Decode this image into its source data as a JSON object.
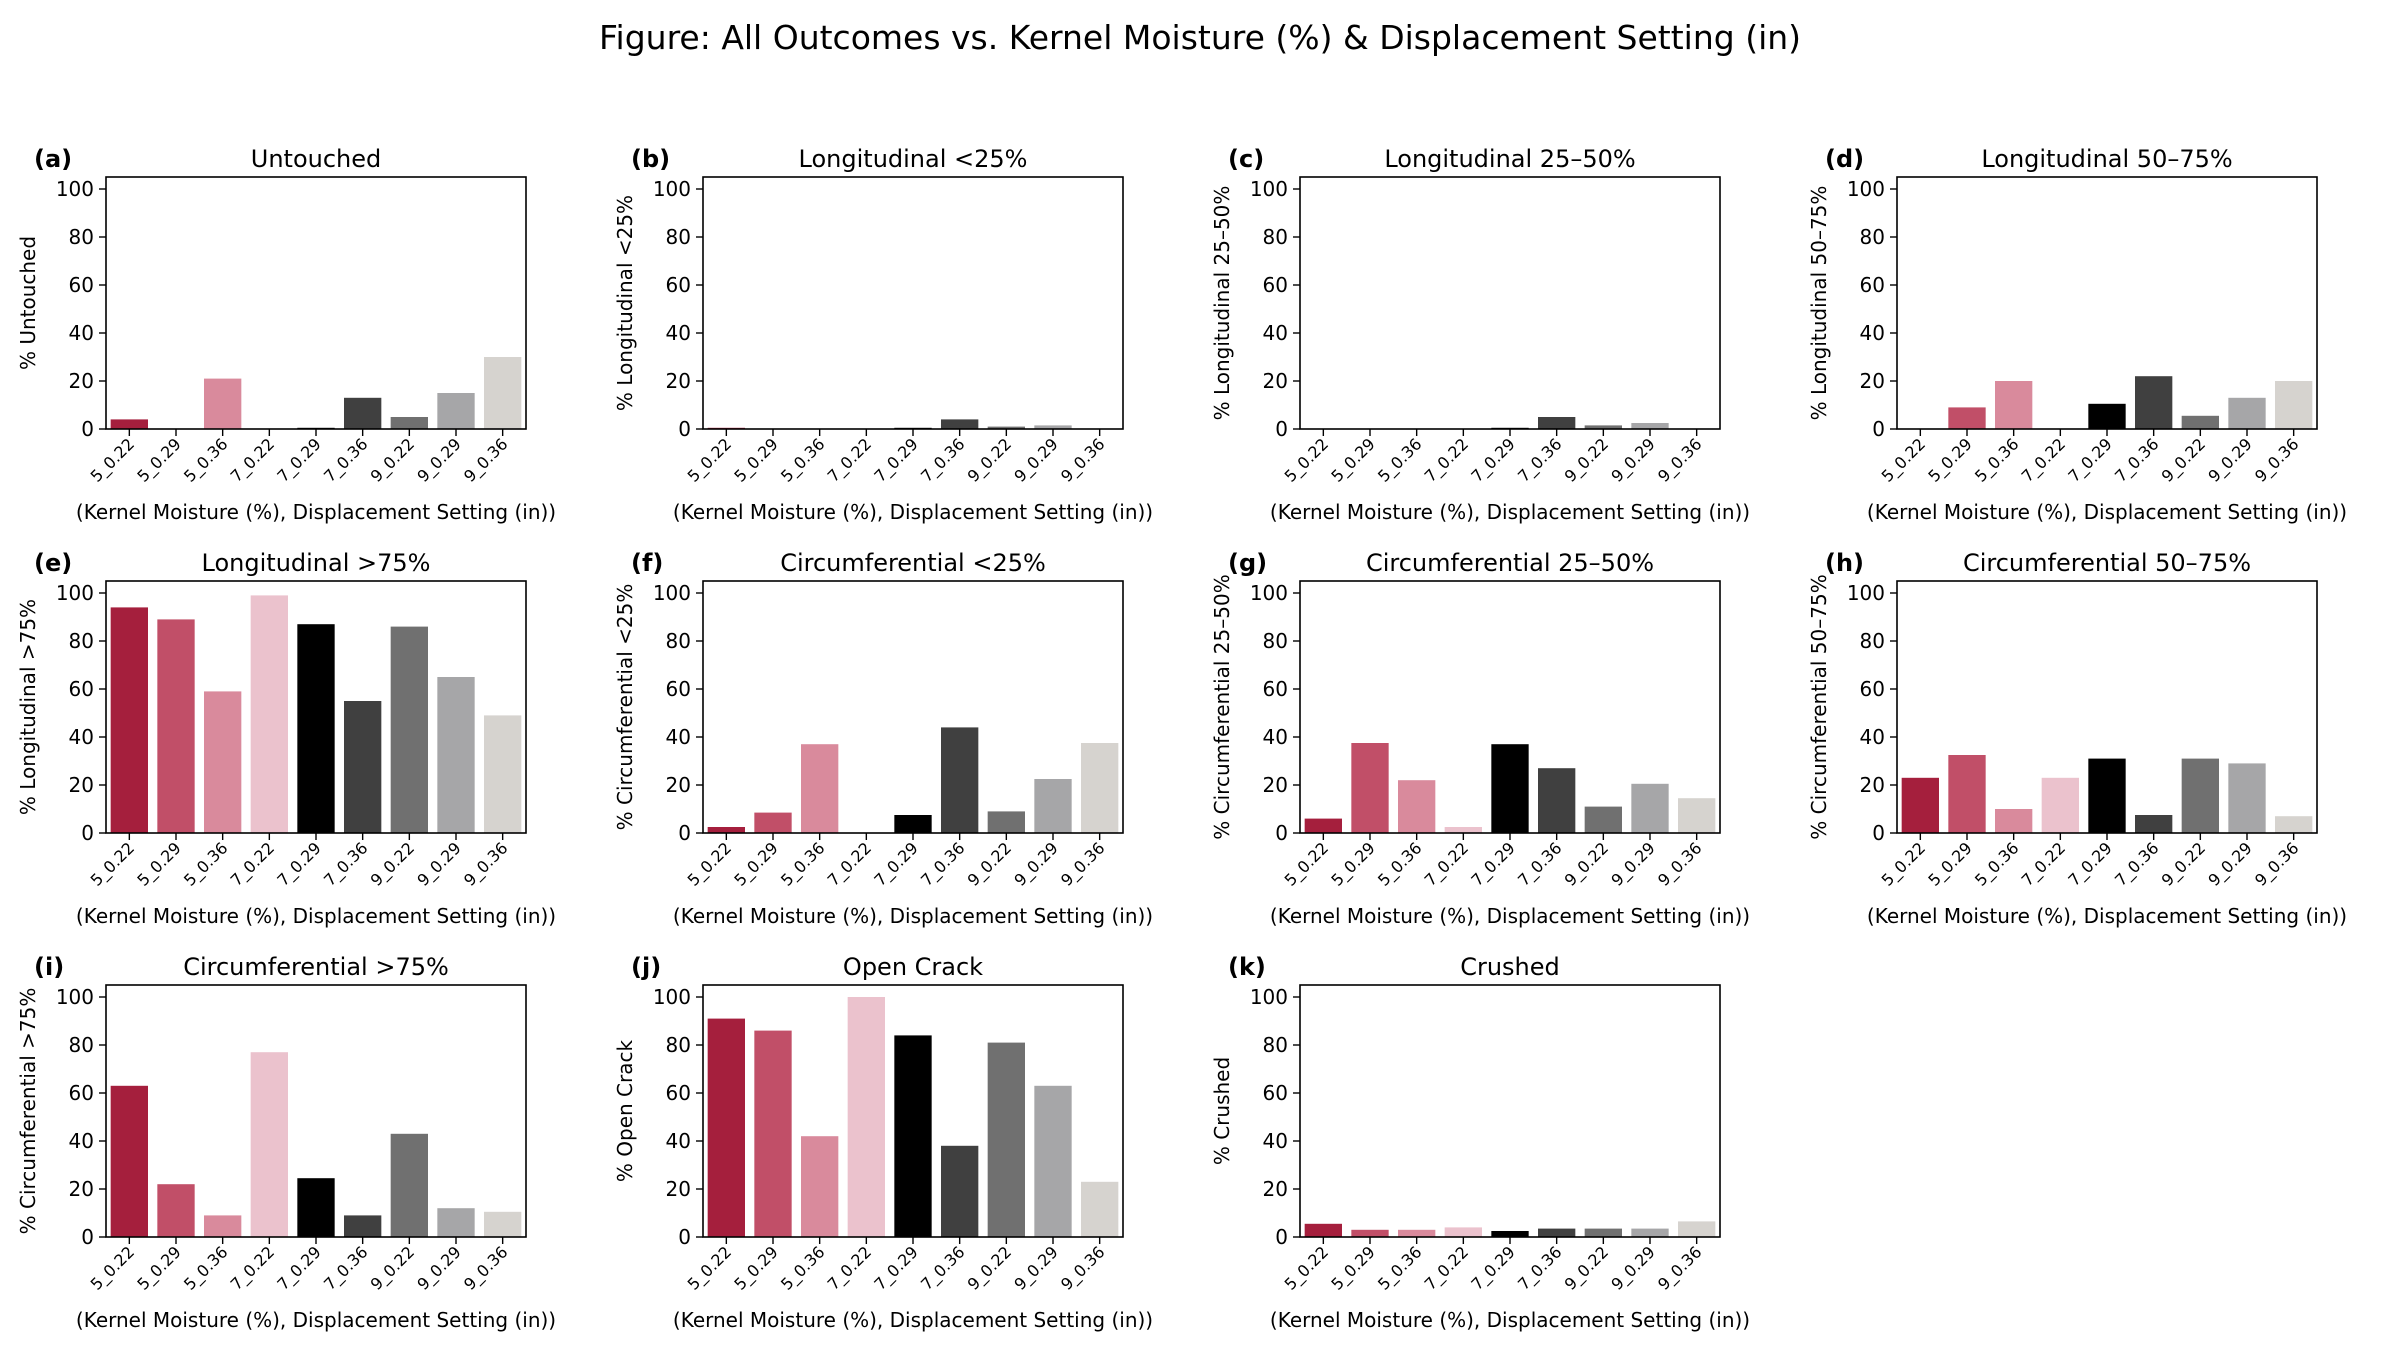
{
  "figure": {
    "title": "Figure: All Outcomes vs. Kernel Moisture (%) & Displacement Setting (in)"
  },
  "colors": [
    "#a51f3d",
    "#c14f68",
    "#d98a9c",
    "#ebc2cd",
    "#000000",
    "#404040",
    "#707070",
    "#a6a6a8",
    "#d6d3cf"
  ],
  "chart_data": [
    {
      "type": "bar",
      "panel_label": "(a)",
      "title": "Untouched",
      "ylabel": "% Untouched",
      "xlabel": "(Kernel Moisture (%), Displacement Setting (in))",
      "categories": [
        "5_0.22",
        "5_0.29",
        "5_0.36",
        "7_0.22",
        "7_0.29",
        "7_0.36",
        "9_0.22",
        "9_0.29",
        "9_0.36"
      ],
      "values": [
        4,
        0,
        21,
        0,
        0.5,
        13,
        5,
        15,
        30
      ],
      "ylim": [
        0,
        105
      ],
      "yticks": [
        0,
        20,
        40,
        60,
        80,
        100
      ]
    },
    {
      "type": "bar",
      "panel_label": "(b)",
      "title": "Longitudinal <25%",
      "ylabel": "% Longitudinal <25%",
      "xlabel": "(Kernel Moisture (%), Displacement Setting (in))",
      "categories": [
        "5_0.22",
        "5_0.29",
        "5_0.36",
        "7_0.22",
        "7_0.29",
        "7_0.36",
        "9_0.22",
        "9_0.29",
        "9_0.36"
      ],
      "values": [
        0.5,
        0,
        0,
        0,
        0.5,
        4,
        1,
        1.5,
        0
      ],
      "ylim": [
        0,
        105
      ],
      "yticks": [
        0,
        20,
        40,
        60,
        80,
        100
      ]
    },
    {
      "type": "bar",
      "panel_label": "(c)",
      "title": "Longitudinal 25–50%",
      "ylabel": "% Longitudinal 25–50%",
      "xlabel": "(Kernel Moisture (%), Displacement Setting (in))",
      "categories": [
        "5_0.22",
        "5_0.29",
        "5_0.36",
        "7_0.22",
        "7_0.29",
        "7_0.36",
        "9_0.22",
        "9_0.29",
        "9_0.36"
      ],
      "values": [
        0,
        0,
        0,
        0,
        0.5,
        5,
        1.5,
        2.5,
        0
      ],
      "ylim": [
        0,
        105
      ],
      "yticks": [
        0,
        20,
        40,
        60,
        80,
        100
      ]
    },
    {
      "type": "bar",
      "panel_label": "(d)",
      "title": "Longitudinal 50–75%",
      "ylabel": "% Longitudinal 50–75%",
      "xlabel": "(Kernel Moisture (%), Displacement Setting (in))",
      "categories": [
        "5_0.22",
        "5_0.29",
        "5_0.36",
        "7_0.22",
        "7_0.29",
        "7_0.36",
        "9_0.22",
        "9_0.29",
        "9_0.36"
      ],
      "values": [
        0,
        9,
        20,
        0,
        10.5,
        22,
        5.5,
        13,
        20
      ],
      "ylim": [
        0,
        105
      ],
      "yticks": [
        0,
        20,
        40,
        60,
        80,
        100
      ]
    },
    {
      "type": "bar",
      "panel_label": "(e)",
      "title": "Longitudinal >75%",
      "ylabel": "% Longitudinal >75%",
      "xlabel": "(Kernel Moisture (%), Displacement Setting (in))",
      "categories": [
        "5_0.22",
        "5_0.29",
        "5_0.36",
        "7_0.22",
        "7_0.29",
        "7_0.36",
        "9_0.22",
        "9_0.29",
        "9_0.36"
      ],
      "values": [
        94,
        89,
        59,
        99,
        87,
        55,
        86,
        65,
        49
      ],
      "ylim": [
        0,
        105
      ],
      "yticks": [
        0,
        20,
        40,
        60,
        80,
        100
      ]
    },
    {
      "type": "bar",
      "panel_label": "(f)",
      "title": "Circumferential <25%",
      "ylabel": "% Circumferential <25%",
      "xlabel": "(Kernel Moisture (%), Displacement Setting (in))",
      "categories": [
        "5_0.22",
        "5_0.29",
        "5_0.36",
        "7_0.22",
        "7_0.29",
        "7_0.36",
        "9_0.22",
        "9_0.29",
        "9_0.36"
      ],
      "values": [
        2.5,
        8.5,
        37,
        0,
        7.5,
        44,
        9,
        22.5,
        37.5
      ],
      "ylim": [
        0,
        105
      ],
      "yticks": [
        0,
        20,
        40,
        60,
        80,
        100
      ]
    },
    {
      "type": "bar",
      "panel_label": "(g)",
      "title": "Circumferential 25–50%",
      "ylabel": "% Circumferential 25–50%",
      "xlabel": "(Kernel Moisture (%), Displacement Setting (in))",
      "categories": [
        "5_0.22",
        "5_0.29",
        "5_0.36",
        "7_0.22",
        "7_0.29",
        "7_0.36",
        "9_0.22",
        "9_0.29",
        "9_0.36"
      ],
      "values": [
        6,
        37.5,
        22,
        2.5,
        37,
        27,
        11,
        20.5,
        14.5
      ],
      "ylim": [
        0,
        105
      ],
      "yticks": [
        0,
        20,
        40,
        60,
        80,
        100
      ]
    },
    {
      "type": "bar",
      "panel_label": "(h)",
      "title": "Circumferential 50–75%",
      "ylabel": "% Circumferential 50–75%",
      "xlabel": "(Kernel Moisture (%), Displacement Setting (in))",
      "categories": [
        "5_0.22",
        "5_0.29",
        "5_0.36",
        "7_0.22",
        "7_0.29",
        "7_0.36",
        "9_0.22",
        "9_0.29",
        "9_0.36"
      ],
      "values": [
        23,
        32.5,
        10,
        23,
        31,
        7.5,
        31,
        29,
        7
      ],
      "ylim": [
        0,
        105
      ],
      "yticks": [
        0,
        20,
        40,
        60,
        80,
        100
      ]
    },
    {
      "type": "bar",
      "panel_label": "(i)",
      "title": "Circumferential >75%",
      "ylabel": "% Circumferential >75%",
      "xlabel": "(Kernel Moisture (%), Displacement Setting (in))",
      "categories": [
        "5_0.22",
        "5_0.29",
        "5_0.36",
        "7_0.22",
        "7_0.29",
        "7_0.36",
        "9_0.22",
        "9_0.29",
        "9_0.36"
      ],
      "values": [
        63,
        22,
        9,
        77,
        24.5,
        9,
        43,
        12,
        10.5
      ],
      "ylim": [
        0,
        105
      ],
      "yticks": [
        0,
        20,
        40,
        60,
        80,
        100
      ]
    },
    {
      "type": "bar",
      "panel_label": "(j)",
      "title": "Open Crack",
      "ylabel": "% Open Crack",
      "xlabel": "(Kernel Moisture (%), Displacement Setting (in))",
      "categories": [
        "5_0.22",
        "5_0.29",
        "5_0.36",
        "7_0.22",
        "7_0.29",
        "7_0.36",
        "9_0.22",
        "9_0.29",
        "9_0.36"
      ],
      "values": [
        91,
        86,
        42,
        100,
        84,
        38,
        81,
        63,
        23
      ],
      "ylim": [
        0,
        105
      ],
      "yticks": [
        0,
        20,
        40,
        60,
        80,
        100
      ]
    },
    {
      "type": "bar",
      "panel_label": "(k)",
      "title": "Crushed",
      "ylabel": "% Crushed",
      "xlabel": "(Kernel Moisture (%), Displacement Setting (in))",
      "categories": [
        "5_0.22",
        "5_0.29",
        "5_0.36",
        "7_0.22",
        "7_0.29",
        "7_0.36",
        "9_0.22",
        "9_0.29",
        "9_0.36"
      ],
      "values": [
        5.5,
        3,
        3,
        4,
        2.5,
        3.5,
        3.5,
        3.5,
        6.5
      ],
      "ylim": [
        0,
        105
      ],
      "yticks": [
        0,
        20,
        40,
        60,
        80,
        100
      ]
    }
  ]
}
